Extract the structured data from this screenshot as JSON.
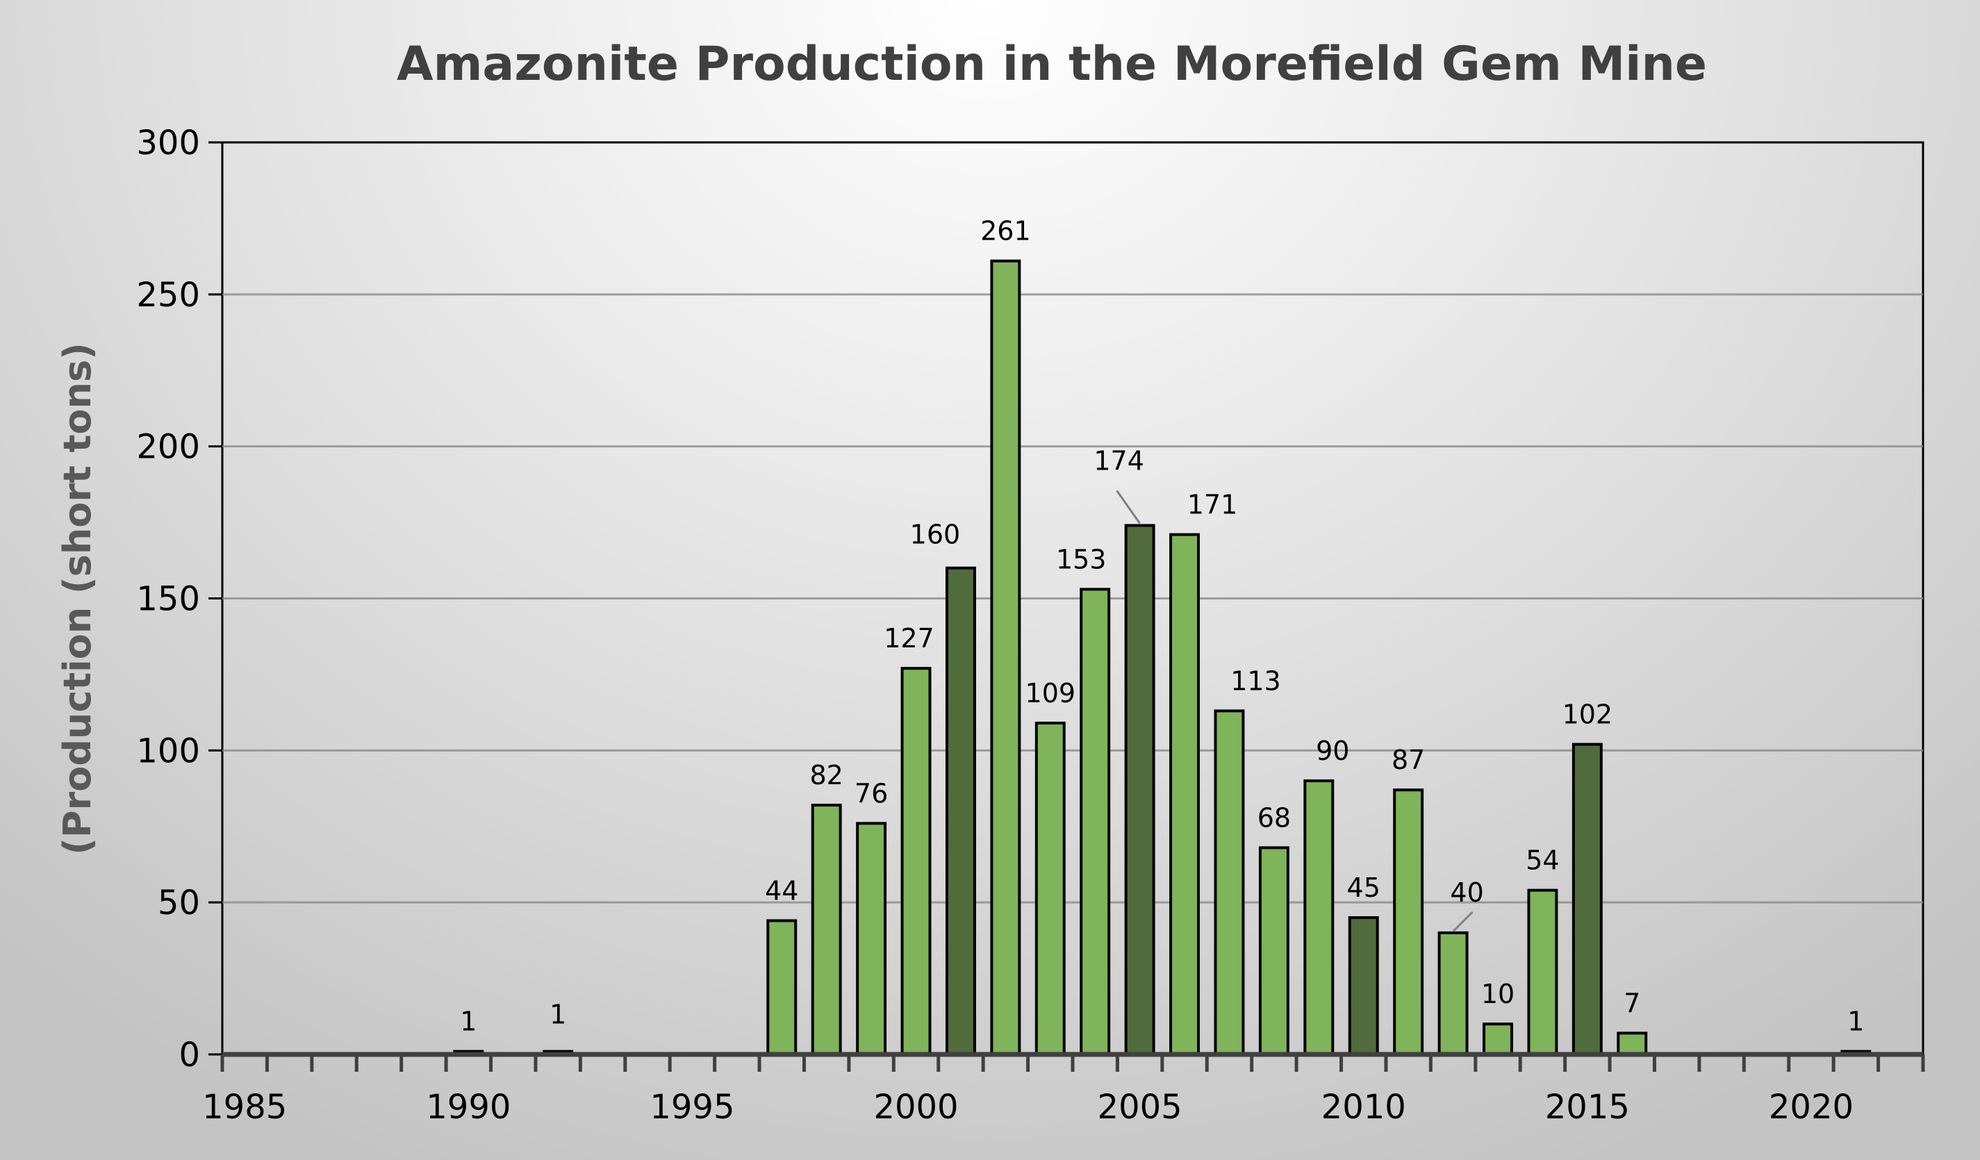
{
  "chart_data": {
    "type": "bar",
    "title": "Amazonite Production in the Morefield Gem Mine",
    "xlabel": "",
    "ylabel": "(Production (short tons)",
    "ylim": [
      0,
      300
    ],
    "yticks": [
      0,
      50,
      100,
      150,
      200,
      250,
      300
    ],
    "xlim": [
      1985,
      2022
    ],
    "xticks": [
      1985,
      1990,
      1995,
      2000,
      2005,
      2010,
      2015,
      2020
    ],
    "grid": true,
    "legend": "none",
    "colors": {
      "light": "#7fb45b",
      "dark": "#506c3c",
      "highlighted_years": [
        2001,
        2005,
        2010,
        2015
      ]
    },
    "x": [
      1990,
      1992,
      1997,
      1998,
      1999,
      2000,
      2001,
      2002,
      2003,
      2004,
      2005,
      2006,
      2007,
      2008,
      2009,
      2010,
      2011,
      2012,
      2013,
      2014,
      2015,
      2016,
      2021
    ],
    "values": [
      1,
      1,
      44,
      82,
      76,
      127,
      160,
      261,
      109,
      153,
      174,
      171,
      113,
      68,
      90,
      45,
      87,
      40,
      10,
      54,
      102,
      7,
      1
    ]
  }
}
